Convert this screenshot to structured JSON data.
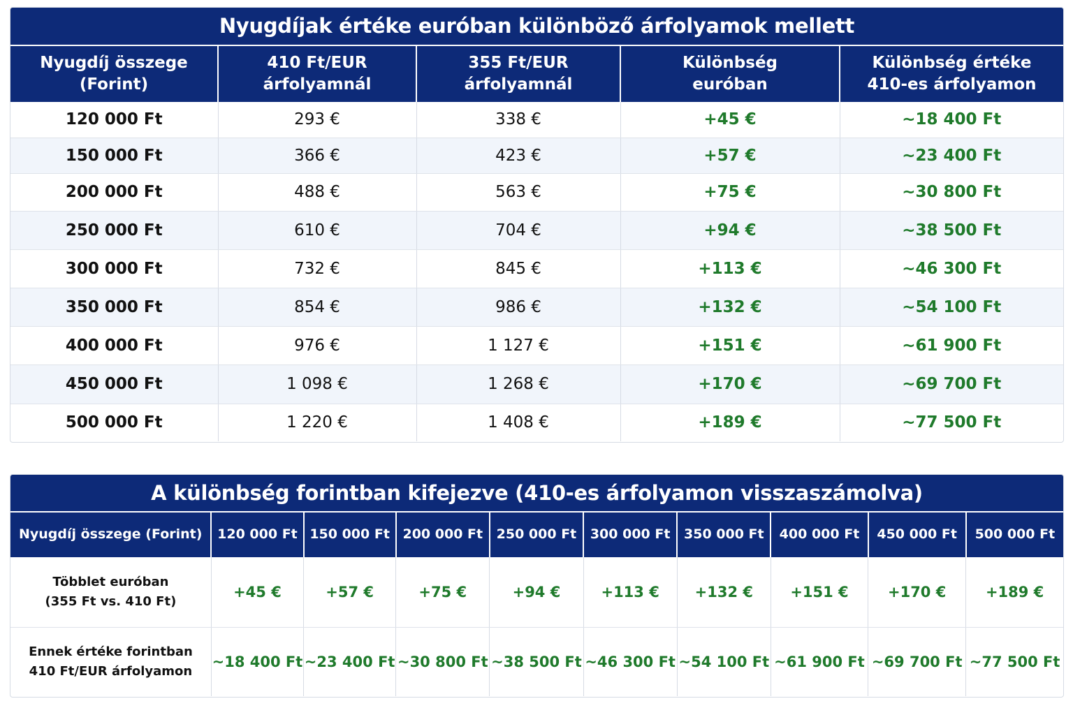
{
  "table1": {
    "title": "Nyugdíjak értéke euróban különböző árfolyamok mellett",
    "headers": [
      [
        "Nyugdíj összege",
        "(Forint)"
      ],
      [
        "410 Ft/EUR",
        "árfolyamnál"
      ],
      [
        "355 Ft/EUR",
        "árfolyamnál"
      ],
      [
        "Különbség",
        "euróban"
      ],
      [
        "Különbség értéke",
        "410-es árfolyamon"
      ]
    ],
    "rows": [
      [
        "120 000 Ft",
        "293 €",
        "338 €",
        "+45 €",
        "~18 400 Ft"
      ],
      [
        "150 000 Ft",
        "366 €",
        "423 €",
        "+57 €",
        "~23 400 Ft"
      ],
      [
        "200 000 Ft",
        "488 €",
        "563 €",
        "+75 €",
        "~30 800 Ft"
      ],
      [
        "250 000 Ft",
        "610 €",
        "704 €",
        "+94 €",
        "~38 500 Ft"
      ],
      [
        "300 000 Ft",
        "732 €",
        "845 €",
        "+113 €",
        "~46 300 Ft"
      ],
      [
        "350 000 Ft",
        "854 €",
        "986 €",
        "+132 €",
        "~54 100 Ft"
      ],
      [
        "400 000 Ft",
        "976 €",
        "1 127 €",
        "+151 €",
        "~61 900 Ft"
      ],
      [
        "450 000 Ft",
        "1 098 €",
        "1 268 €",
        "+170 €",
        "~69 700 Ft"
      ],
      [
        "500 000 Ft",
        "1 220 €",
        "1 408 €",
        "+189 €",
        "~77 500 Ft"
      ]
    ]
  },
  "table2": {
    "title": "A különbség forintban kifejezve (410-es árfolyamon visszaszámolva)",
    "header_label": "Nyugdíj összege (Forint)",
    "columns": [
      "120 000 Ft",
      "150 000 Ft",
      "200 000 Ft",
      "250 000 Ft",
      "300 000 Ft",
      "350 000 Ft",
      "400 000 Ft",
      "450 000 Ft",
      "500 000 Ft"
    ],
    "rows": [
      {
        "label": [
          "Többlet euróban",
          "(355 Ft vs. 410 Ft)"
        ],
        "values": [
          "+45 €",
          "+57 €",
          "+75 €",
          "+94 €",
          "+113 €",
          "+132 €",
          "+151 €",
          "+170 €",
          "+189 €"
        ]
      },
      {
        "label": [
          "Ennek értéke forintban",
          "410 Ft/EUR árfolyamon"
        ],
        "values": [
          "~18 400 Ft",
          "~23 400 Ft",
          "~30 800 Ft",
          "~38 500 Ft",
          "~46 300 Ft",
          "~54 100 Ft",
          "~61 900 Ft",
          "~69 700 Ft",
          "~77 500 Ft"
        ]
      }
    ]
  },
  "colors": {
    "header_bg": "#0d2a78",
    "header_text": "#ffffff",
    "positive_value": "#1f7a2b",
    "alt_row_bg": "#f1f5fb",
    "border": "#d6dbe4"
  }
}
